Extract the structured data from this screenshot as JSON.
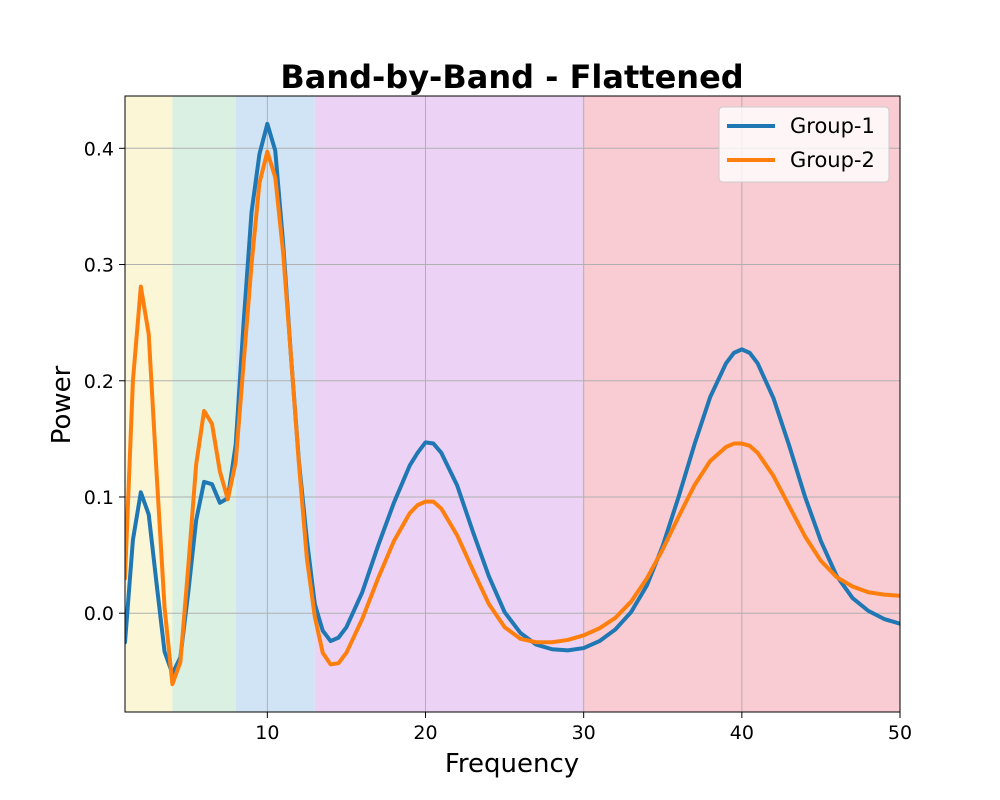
{
  "chart_data": {
    "type": "line",
    "title": "Band-by-Band - Flattened",
    "xlabel": "Frequency",
    "ylabel": "Power",
    "xlim": [
      1,
      50
    ],
    "ylim": [
      -0.085,
      0.445
    ],
    "xticks": [
      10,
      20,
      30,
      40,
      50
    ],
    "yticks": [
      0.0,
      0.1,
      0.2,
      0.3,
      0.4
    ],
    "ytick_labels": [
      "0.0",
      "0.1",
      "0.2",
      "0.3",
      "0.4"
    ],
    "grid": true,
    "legend_position": "top-right",
    "bands": [
      {
        "range": [
          1,
          4
        ],
        "color": "#faf6d6"
      },
      {
        "range": [
          4,
          8
        ],
        "color": "#daf0e2"
      },
      {
        "range": [
          8,
          13
        ],
        "color": "#d0e4f5"
      },
      {
        "range": [
          13,
          30
        ],
        "color": "#ecd2f5"
      },
      {
        "range": [
          30,
          50
        ],
        "color": "#f9cbd3"
      }
    ],
    "series": [
      {
        "name": "Group-1",
        "color": "#1f77b4",
        "x": [
          1,
          1.5,
          2,
          2.5,
          3,
          3.5,
          4,
          4.5,
          5,
          5.5,
          6,
          6.5,
          7,
          7.5,
          8,
          8.5,
          9,
          9.5,
          10,
          10.5,
          11,
          11.5,
          12,
          12.5,
          13,
          13.5,
          14,
          14.5,
          15,
          16,
          17,
          18,
          19,
          19.5,
          20,
          20.5,
          21,
          22,
          23,
          24,
          25,
          26,
          27,
          28,
          29,
          30,
          31,
          32,
          33,
          34,
          35,
          36,
          37,
          38,
          39,
          39.5,
          40,
          40.5,
          41,
          42,
          43,
          44,
          45,
          46,
          47,
          48,
          49,
          50
        ],
        "values": [
          -0.025,
          0.063,
          0.104,
          0.085,
          0.025,
          -0.033,
          -0.052,
          -0.038,
          0.018,
          0.08,
          0.113,
          0.111,
          0.095,
          0.099,
          0.145,
          0.25,
          0.345,
          0.395,
          0.421,
          0.398,
          0.318,
          0.22,
          0.13,
          0.063,
          0.008,
          -0.015,
          -0.024,
          -0.021,
          -0.012,
          0.018,
          0.058,
          0.095,
          0.127,
          0.138,
          0.147,
          0.146,
          0.138,
          0.11,
          0.07,
          0.032,
          0.001,
          -0.017,
          -0.027,
          -0.031,
          -0.032,
          -0.03,
          -0.024,
          -0.014,
          0.001,
          0.024,
          0.058,
          0.1,
          0.145,
          0.186,
          0.215,
          0.224,
          0.227,
          0.224,
          0.215,
          0.185,
          0.144,
          0.1,
          0.062,
          0.032,
          0.013,
          0.002,
          -0.005,
          -0.009
        ]
      },
      {
        "name": "Group-2",
        "color": "#ff7f0e",
        "x": [
          1,
          1.5,
          2,
          2.5,
          3,
          3.5,
          4,
          4.5,
          5,
          5.5,
          6,
          6.5,
          7,
          7.5,
          8,
          8.5,
          9,
          9.5,
          10,
          10.5,
          11,
          11.5,
          12,
          12.5,
          13,
          13.5,
          14,
          14.5,
          15,
          16,
          17,
          18,
          19,
          19.5,
          20,
          20.5,
          21,
          22,
          23,
          24,
          25,
          26,
          27,
          28,
          29,
          30,
          31,
          32,
          33,
          34,
          35,
          36,
          37,
          38,
          39,
          39.5,
          40,
          40.5,
          41,
          42,
          43,
          44,
          45,
          46,
          47,
          48,
          49,
          50
        ],
        "values": [
          0.03,
          0.2,
          0.281,
          0.24,
          0.12,
          0.005,
          -0.061,
          -0.042,
          0.04,
          0.128,
          0.174,
          0.163,
          0.122,
          0.098,
          0.13,
          0.215,
          0.3,
          0.37,
          0.397,
          0.375,
          0.31,
          0.22,
          0.128,
          0.047,
          -0.003,
          -0.034,
          -0.044,
          -0.043,
          -0.034,
          -0.005,
          0.03,
          0.062,
          0.086,
          0.093,
          0.096,
          0.096,
          0.09,
          0.067,
          0.037,
          0.008,
          -0.012,
          -0.022,
          -0.025,
          -0.025,
          -0.023,
          -0.019,
          -0.013,
          -0.004,
          0.01,
          0.03,
          0.055,
          0.083,
          0.11,
          0.131,
          0.143,
          0.146,
          0.146,
          0.144,
          0.138,
          0.118,
          0.092,
          0.066,
          0.045,
          0.031,
          0.023,
          0.018,
          0.016,
          0.015
        ]
      }
    ]
  }
}
